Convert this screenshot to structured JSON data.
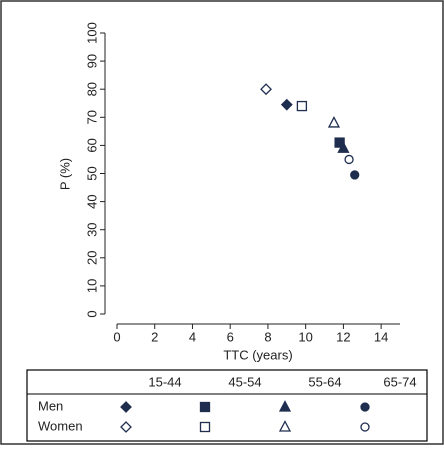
{
  "chart_data": {
    "type": "scatter",
    "xlabel": "TTC (years)",
    "ylabel": "P (%)",
    "xlim": [
      0,
      15
    ],
    "xticks": [
      0,
      2,
      4,
      6,
      8,
      10,
      12,
      14
    ],
    "ylim": [
      0,
      100
    ],
    "yticks": [
      0,
      10,
      20,
      30,
      40,
      50,
      60,
      70,
      80,
      90,
      100
    ],
    "categories": [
      "15-44",
      "45-54",
      "55-64",
      "65-74"
    ],
    "markers": [
      "diamond",
      "square",
      "triangle",
      "circle"
    ],
    "series": [
      {
        "name": "Men",
        "color": "#1f2d4f",
        "filled": true,
        "x": [
          9.0,
          11.8,
          12.0,
          12.6
        ],
        "values": [
          74.5,
          61,
          59,
          49.5
        ]
      },
      {
        "name": "Women",
        "color": "#1f2d4f",
        "filled": false,
        "x": [
          7.9,
          9.8,
          11.5,
          12.3
        ],
        "values": [
          80,
          74,
          68,
          55
        ]
      }
    ]
  }
}
